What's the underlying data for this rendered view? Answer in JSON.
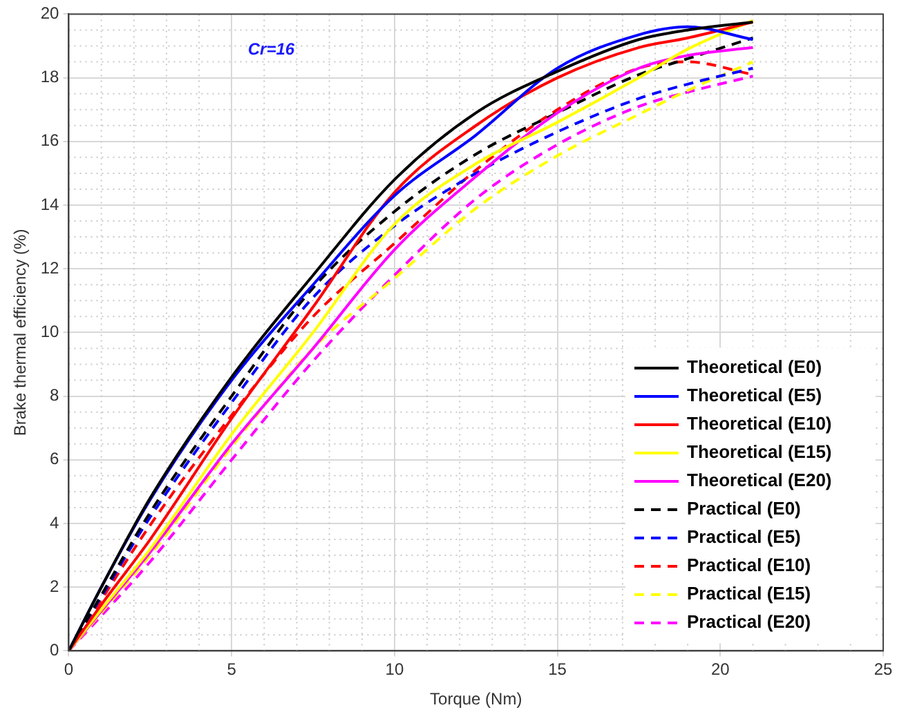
{
  "chart_data": {
    "type": "line",
    "xlabel": "Torque (Nm)",
    "ylabel": "Brake thermal efficiency (%)",
    "annotations": [
      "Cr=16"
    ],
    "x": [
      0,
      1,
      2.5,
      5,
      7.5,
      10,
      12.5,
      15,
      17.5,
      19,
      21
    ],
    "xlim": [
      0,
      25
    ],
    "xticks": [
      0,
      5,
      10,
      15,
      20,
      25
    ],
    "ylim": [
      0,
      20
    ],
    "yticks": [
      0,
      2,
      4,
      6,
      8,
      10,
      12,
      14,
      16,
      18,
      20
    ],
    "grid": true,
    "legend": "bottom right",
    "marker": "none",
    "series": [
      {
        "name": "Theoretical (E0)",
        "color": "#000000",
        "line_style": "solid",
        "values": [
          0,
          2.0,
          4.8,
          8.6,
          11.8,
          14.8,
          16.9,
          18.2,
          19.2,
          19.5,
          19.75
        ]
      },
      {
        "name": "Theoretical (E5)",
        "color": "#0000ff",
        "line_style": "solid",
        "values": [
          0,
          2.0,
          4.75,
          8.5,
          11.5,
          14.3,
          16.2,
          18.3,
          19.35,
          19.6,
          19.2
        ]
      },
      {
        "name": "Theoretical (E10)",
        "color": "#ff0000",
        "line_style": "solid",
        "values": [
          0,
          1.45,
          3.5,
          7.3,
          10.8,
          14.4,
          16.5,
          18.0,
          18.95,
          19.25,
          19.75
        ]
      },
      {
        "name": "Theoretical (E15)",
        "color": "#ffff00",
        "line_style": "solid",
        "values": [
          0,
          1.3,
          3.2,
          6.8,
          10.0,
          13.4,
          15.3,
          16.6,
          18.0,
          18.9,
          19.8
        ]
      },
      {
        "name": "Theoretical (E20)",
        "color": "#ff00ff",
        "line_style": "solid",
        "values": [
          0,
          1.25,
          3.1,
          6.5,
          9.5,
          12.6,
          14.9,
          16.9,
          18.3,
          18.7,
          18.95
        ]
      },
      {
        "name": "Practical (E0)",
        "color": "#000000",
        "line_style": "dashed",
        "values": [
          0,
          1.75,
          4.35,
          8.0,
          11.4,
          13.8,
          15.6,
          16.9,
          18.1,
          18.6,
          19.25
        ]
      },
      {
        "name": "Practical (E5)",
        "color": "#0000ff",
        "line_style": "dashed",
        "values": [
          0,
          1.7,
          4.2,
          7.8,
          11.1,
          13.35,
          15.0,
          16.3,
          17.35,
          17.8,
          18.3
        ]
      },
      {
        "name": "Practical (E10)",
        "color": "#ff0000",
        "line_style": "dashed",
        "values": [
          0,
          1.6,
          3.95,
          7.4,
          10.5,
          12.8,
          15.1,
          17.0,
          18.3,
          18.5,
          18.1
        ]
      },
      {
        "name": "Practical (E15)",
        "color": "#ffff00",
        "line_style": "dashed",
        "values": [
          0,
          1.2,
          3.0,
          6.4,
          9.5,
          11.7,
          13.9,
          15.55,
          16.85,
          17.6,
          18.5
        ]
      },
      {
        "name": "Practical (E20)",
        "color": "#ff00ff",
        "line_style": "dashed",
        "values": [
          0,
          1.1,
          2.8,
          6.0,
          9.1,
          11.8,
          14.2,
          15.9,
          17.1,
          17.55,
          18.05
        ]
      }
    ]
  }
}
